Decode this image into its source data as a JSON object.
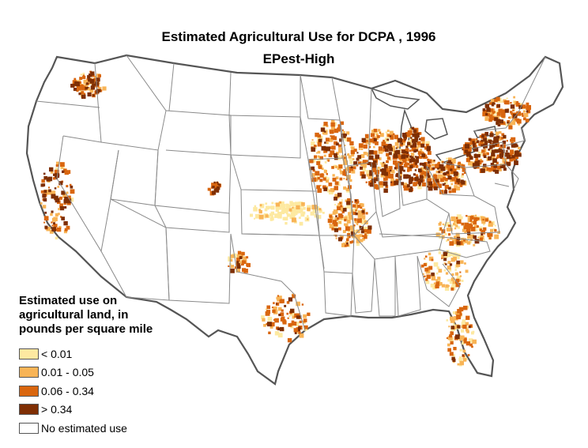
{
  "title": "Estimated Agricultural Use for DCPA , 1996",
  "subtitle": "EPest-High",
  "legend": {
    "heading_lines": [
      "Estimated use on",
      "agricultural land, in",
      "pounds per square mile"
    ],
    "items": [
      {
        "label": "< 0.01",
        "color": "#fde9a1"
      },
      {
        "label": "0.01 - 0.05",
        "color": "#f8b456"
      },
      {
        "label": "0.06 - 0.34",
        "color": "#d9660f"
      },
      {
        "label": "> 0.34",
        "color": "#7f2f04"
      },
      {
        "label": "No estimated use",
        "color": "#ffffff"
      }
    ]
  },
  "colors": {
    "state_border": "#8a8a8a",
    "coast": "#555555"
  }
}
